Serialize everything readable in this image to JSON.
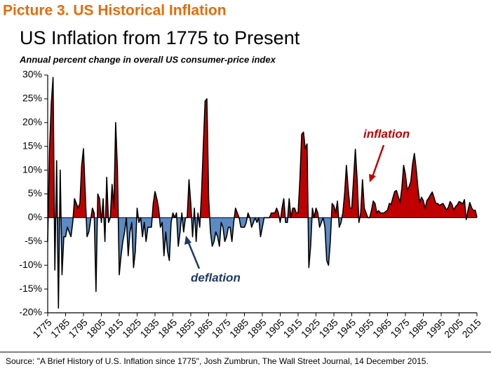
{
  "heading": "Picture 3. US Historical Inflation",
  "chart_data": {
    "type": "area",
    "title": "US Inflation from 1775 to Present",
    "subtitle": "Annual percent change in overall US consumer-price index",
    "x": [
      1775,
      1776,
      1777,
      1778,
      1779,
      1780,
      1781,
      1782,
      1783,
      1784,
      1785,
      1786,
      1787,
      1788,
      1789,
      1790,
      1791,
      1792,
      1793,
      1794,
      1795,
      1796,
      1797,
      1798,
      1799,
      1800,
      1801,
      1802,
      1803,
      1804,
      1805,
      1806,
      1807,
      1808,
      1809,
      1810,
      1811,
      1812,
      1813,
      1814,
      1815,
      1816,
      1817,
      1818,
      1819,
      1820,
      1821,
      1822,
      1823,
      1824,
      1825,
      1826,
      1827,
      1828,
      1829,
      1830,
      1831,
      1832,
      1833,
      1834,
      1835,
      1836,
      1837,
      1838,
      1839,
      1840,
      1841,
      1842,
      1843,
      1844,
      1845,
      1846,
      1847,
      1848,
      1849,
      1850,
      1851,
      1852,
      1853,
      1854,
      1855,
      1856,
      1857,
      1858,
      1859,
      1860,
      1861,
      1862,
      1863,
      1864,
      1865,
      1866,
      1867,
      1868,
      1869,
      1870,
      1871,
      1872,
      1873,
      1874,
      1875,
      1876,
      1877,
      1878,
      1879,
      1880,
      1881,
      1882,
      1883,
      1884,
      1885,
      1886,
      1887,
      1888,
      1889,
      1890,
      1891,
      1892,
      1893,
      1894,
      1895,
      1896,
      1897,
      1898,
      1899,
      1900,
      1901,
      1902,
      1903,
      1904,
      1905,
      1906,
      1907,
      1908,
      1909,
      1910,
      1911,
      1912,
      1913,
      1914,
      1915,
      1916,
      1917,
      1918,
      1919,
      1920,
      1921,
      1922,
      1923,
      1924,
      1925,
      1926,
      1927,
      1928,
      1929,
      1930,
      1931,
      1932,
      1933,
      1934,
      1935,
      1936,
      1937,
      1938,
      1939,
      1940,
      1941,
      1942,
      1943,
      1944,
      1945,
      1946,
      1947,
      1948,
      1949,
      1950,
      1951,
      1952,
      1953,
      1954,
      1955,
      1956,
      1957,
      1958,
      1959,
      1960,
      1961,
      1962,
      1963,
      1964,
      1965,
      1966,
      1967,
      1968,
      1969,
      1970,
      1971,
      1972,
      1973,
      1974,
      1975,
      1976,
      1977,
      1978,
      1979,
      1980,
      1981,
      1982,
      1983,
      1984,
      1985,
      1986,
      1987,
      1988,
      1989,
      1990,
      1991,
      1992,
      1993,
      1994,
      1995,
      1996,
      1997,
      1998,
      1999,
      2000,
      2001,
      2002,
      2003,
      2004,
      2005,
      2006,
      2007,
      2008,
      2009,
      2010,
      2011,
      2012,
      2013,
      2014,
      2015
    ],
    "values": [
      -5,
      14,
      24,
      29.5,
      -11,
      12,
      -19,
      10,
      -12,
      -4,
      -4,
      -2,
      -3,
      -4,
      -1,
      4,
      3,
      2,
      3,
      11,
      14.5,
      5,
      -4,
      -3,
      -0.5,
      2,
      1,
      -15.5,
      5,
      4,
      -1,
      4,
      -5,
      8.5,
      -1,
      0,
      7,
      2,
      20,
      10,
      -12,
      -8,
      -5,
      -3,
      0,
      -8,
      -3,
      -1,
      -10.5,
      -7,
      2,
      -1,
      0,
      -4,
      -1,
      -5,
      -2,
      -2,
      -2,
      3,
      5.5,
      4,
      2,
      -2,
      -1,
      -8,
      -3,
      -7,
      -9,
      -1,
      1,
      0,
      1,
      -6,
      -3,
      1,
      -3,
      0,
      0,
      8,
      3,
      -4,
      2,
      -5,
      1,
      -2,
      5,
      15,
      24.5,
      25,
      4,
      -3,
      -6,
      -5,
      -3,
      -4,
      -6,
      -1,
      -2,
      -5,
      -4,
      -2,
      -2,
      -5,
      -1,
      2,
      1,
      0,
      -2,
      -2,
      -2,
      -1,
      1,
      0,
      -2,
      -1,
      0,
      -1,
      0,
      -4,
      -2,
      0,
      0,
      0,
      0,
      1,
      1,
      1,
      2,
      1,
      -1,
      2,
      4,
      -1,
      -1,
      4,
      0,
      2,
      2,
      1,
      1,
      8,
      17.5,
      18,
      14.5,
      15.5,
      -10.5,
      -6,
      2,
      0,
      2,
      1,
      -2,
      -1,
      0,
      -2,
      -9,
      -10,
      -5,
      3,
      2.5,
      1,
      3.5,
      -2,
      -1,
      1,
      5,
      11,
      6,
      2,
      2,
      8,
      14.4,
      8,
      -1,
      1,
      8,
      2,
      1,
      0,
      0,
      1.5,
      3.5,
      3,
      1,
      1.5,
      1,
      1,
      1,
      1.3,
      1.6,
      3,
      2.8,
      4.2,
      5.5,
      5.7,
      4.4,
      3.2,
      6.2,
      11,
      9.1,
      5.8,
      6.5,
      7.6,
      11.3,
      13.5,
      10.3,
      6.2,
      3.2,
      4.3,
      3.6,
      1.9,
      3.6,
      4.1,
      4.8,
      5.4,
      4.2,
      3.0,
      3.0,
      2.6,
      2.8,
      3.0,
      2.3,
      1.6,
      2.2,
      3.4,
      2.8,
      1.6,
      2.3,
      2.7,
      3.4,
      3.2,
      2.9,
      3.8,
      -0.4,
      1.6,
      3.2,
      2.1,
      1.5,
      1.6,
      0.1
    ],
    "color": "#000000",
    "fill_positive": "#c00000",
    "fill_negative": "#5b8bc5",
    "xlim": [
      1775,
      2015
    ],
    "xticks": [
      1775,
      1785,
      1795,
      1805,
      1815,
      1825,
      1835,
      1845,
      1855,
      1865,
      1875,
      1885,
      1895,
      1905,
      1915,
      1925,
      1935,
      1945,
      1955,
      1965,
      1975,
      1985,
      1995,
      2005,
      2015
    ],
    "ylim": [
      -20,
      30
    ],
    "yticks": [
      {
        "value": -20,
        "label": "-20%"
      },
      {
        "value": -15,
        "label": "-15%"
      },
      {
        "value": -10,
        "label": "-10%"
      },
      {
        "value": -5,
        "label": "-5%"
      },
      {
        "value": 0,
        "label": "0%"
      },
      {
        "value": 5,
        "label": "5%"
      },
      {
        "value": 10,
        "label": "10%"
      },
      {
        "value": 15,
        "label": "15%"
      },
      {
        "value": 20,
        "label": "20%"
      },
      {
        "value": 25,
        "label": "25%"
      },
      {
        "value": 30,
        "label": "30%"
      }
    ],
    "annotations": [
      "inflation",
      "deflation"
    ],
    "source": "Source: \"A Brief History of U.S. Inflation since 1775\", Josh Zumbrun,  The Wall Street Journal, 14 December 2015."
  }
}
